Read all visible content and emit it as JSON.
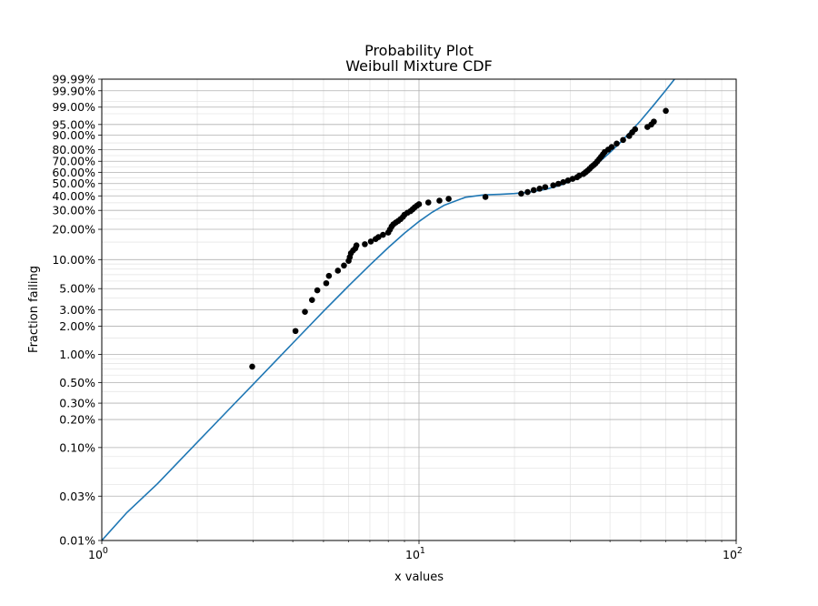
{
  "chart_data": {
    "type": "scatter",
    "title": "Probability Plot",
    "subtitle": "Weibull Mixture CDF",
    "xlabel": "x values",
    "ylabel": "Fraction failing",
    "x_scale": "log",
    "y_scale": "weibull",
    "xlim": [
      1,
      100
    ],
    "ylim": [
      0.0001,
      0.9999
    ],
    "grid": true,
    "legend": "none",
    "colors": {
      "points": "#000000",
      "fit_line": "#1f77b4",
      "grid_major": "#b0b0b0",
      "grid_minor": "#e6e6e6"
    },
    "x_ticks": [
      {
        "base": "10",
        "exp": "0",
        "value": 1
      },
      {
        "base": "10",
        "exp": "1",
        "value": 10
      },
      {
        "base": "10",
        "exp": "2",
        "value": 100
      }
    ],
    "y_ticks": [
      {
        "label": "0.01%",
        "value": 0.0001
      },
      {
        "label": "0.03%",
        "value": 0.0003
      },
      {
        "label": "0.10%",
        "value": 0.001
      },
      {
        "label": "0.20%",
        "value": 0.002
      },
      {
        "label": "0.30%",
        "value": 0.003
      },
      {
        "label": "0.50%",
        "value": 0.005
      },
      {
        "label": "1.00%",
        "value": 0.01
      },
      {
        "label": "2.00%",
        "value": 0.02
      },
      {
        "label": "3.00%",
        "value": 0.03
      },
      {
        "label": "5.00%",
        "value": 0.05
      },
      {
        "label": "10.00%",
        "value": 0.1
      },
      {
        "label": "20.00%",
        "value": 0.2
      },
      {
        "label": "30.00%",
        "value": 0.3
      },
      {
        "label": "40.00%",
        "value": 0.4
      },
      {
        "label": "50.00%",
        "value": 0.5
      },
      {
        "label": "60.00%",
        "value": 0.6
      },
      {
        "label": "70.00%",
        "value": 0.7
      },
      {
        "label": "80.00%",
        "value": 0.8
      },
      {
        "label": "90.00%",
        "value": 0.9
      },
      {
        "label": "95.00%",
        "value": 0.95
      },
      {
        "label": "99.00%",
        "value": 0.99
      },
      {
        "label": "99.90%",
        "value": 0.999
      },
      {
        "label": "99.99%",
        "value": 0.9999
      }
    ],
    "points": {
      "x": [
        2.98,
        4.08,
        4.37,
        4.6,
        4.78,
        5.1,
        5.2,
        5.55,
        5.8,
        6.0,
        6.05,
        6.1,
        6.2,
        6.3,
        6.35,
        6.75,
        7.05,
        7.3,
        7.45,
        7.7,
        8.0,
        8.1,
        8.2,
        8.3,
        8.45,
        8.6,
        8.75,
        8.9,
        9.0,
        9.2,
        9.4,
        9.55,
        9.7,
        9.85,
        10.0,
        10.7,
        11.6,
        12.4,
        16.2,
        21.0,
        22.0,
        23.0,
        24.0,
        25.0,
        26.5,
        27.5,
        28.5,
        29.5,
        30.5,
        31.5,
        32.0,
        33.0,
        33.5,
        34.0,
        34.5,
        35.0,
        35.5,
        36.0,
        36.5,
        37.0,
        37.5,
        38.0,
        38.5,
        39.5,
        40.5,
        42.0,
        44.0,
        46.0,
        47.0,
        48.0,
        52.5,
        54.0,
        55.0,
        60.0
      ],
      "y": [
        0.0074,
        0.0178,
        0.0285,
        0.038,
        0.048,
        0.057,
        0.068,
        0.077,
        0.087,
        0.097,
        0.106,
        0.116,
        0.124,
        0.13,
        0.139,
        0.143,
        0.152,
        0.161,
        0.168,
        0.177,
        0.186,
        0.199,
        0.213,
        0.223,
        0.232,
        0.24,
        0.25,
        0.262,
        0.274,
        0.286,
        0.295,
        0.307,
        0.32,
        0.33,
        0.34,
        0.352,
        0.365,
        0.378,
        0.392,
        0.417,
        0.43,
        0.445,
        0.457,
        0.47,
        0.485,
        0.498,
        0.512,
        0.527,
        0.541,
        0.555,
        0.57,
        0.585,
        0.6,
        0.615,
        0.632,
        0.65,
        0.665,
        0.68,
        0.7,
        0.72,
        0.74,
        0.76,
        0.78,
        0.8,
        0.82,
        0.845,
        0.87,
        0.895,
        0.915,
        0.93,
        0.94,
        0.95,
        0.96,
        0.985
      ]
    },
    "fit_curve": {
      "x": [
        1,
        1.2,
        1.5,
        2,
        2.5,
        3,
        4,
        5,
        6,
        7,
        8,
        9,
        10,
        11,
        12,
        14,
        16,
        18,
        20,
        22,
        25,
        28,
        30,
        32,
        34,
        36,
        38,
        40,
        43,
        46,
        50,
        55,
        60,
        65
      ],
      "y": [
        0.0001,
        0.0002,
        0.00041,
        0.00114,
        0.00251,
        0.00477,
        0.0132,
        0.0289,
        0.0534,
        0.0879,
        0.1322,
        0.1835,
        0.2372,
        0.2885,
        0.3325,
        0.3894,
        0.4077,
        0.4122,
        0.4182,
        0.427,
        0.4502,
        0.4874,
        0.5218,
        0.5641,
        0.6131,
        0.6666,
        0.7219,
        0.7762,
        0.8503,
        0.9114,
        0.9632,
        0.9923,
        0.9991,
        0.99995
      ]
    }
  }
}
